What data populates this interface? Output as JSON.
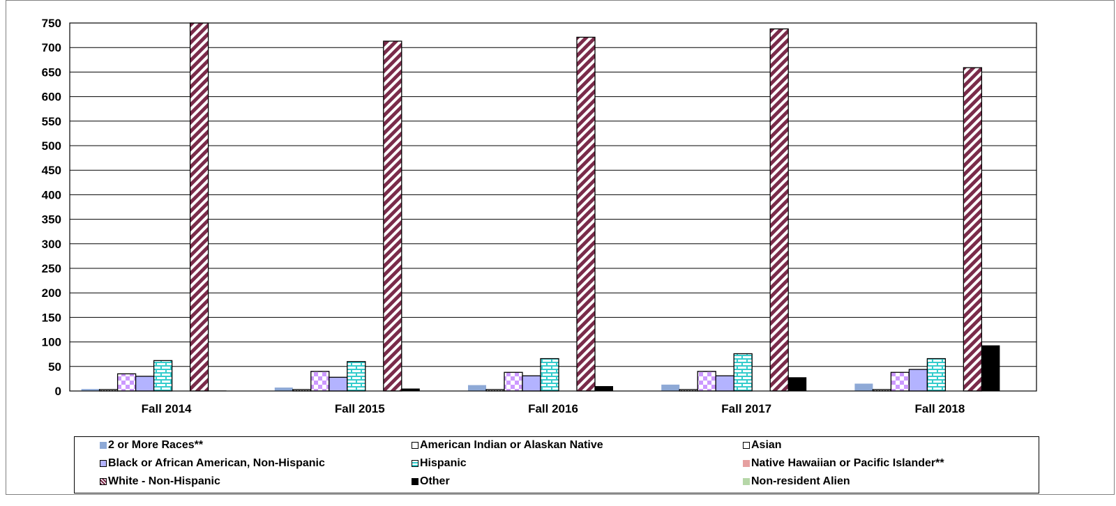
{
  "chart_data": {
    "type": "bar",
    "categories": [
      "Fall 2014",
      "Fall 2015",
      "Fall 2016",
      "Fall 2017",
      "Fall 2018"
    ],
    "ylim": [
      0,
      750
    ],
    "yticks": [
      "0",
      "50",
      "100",
      "150",
      "200",
      "250",
      "300",
      "350",
      "400",
      "450",
      "500",
      "550",
      "600",
      "650",
      "700",
      "750"
    ],
    "grid": true,
    "legend_position": "bottom",
    "series": [
      {
        "name": "2 or More Races**",
        "values": [
          4,
          7,
          12,
          13,
          15
        ],
        "color": "#8ea9d6",
        "pattern": "solid"
      },
      {
        "name": "American Indian or Alaskan Native",
        "values": [
          3,
          3,
          3,
          3,
          3
        ],
        "color": "#000000",
        "pattern": "dotted-light"
      },
      {
        "name": "Asian",
        "values": [
          35,
          40,
          38,
          40,
          38
        ],
        "color": "#cc99ff",
        "pattern": "checker"
      },
      {
        "name": "Black or African American, Non-Hispanic",
        "values": [
          30,
          28,
          31,
          31,
          44
        ],
        "color": "#b3b3ff",
        "pattern": "solid"
      },
      {
        "name": "Hispanic",
        "values": [
          62,
          60,
          66,
          76,
          66
        ],
        "color": "#33cccc",
        "pattern": "brick"
      },
      {
        "name": "Native Hawaiian or Pacific Islander**",
        "values": [
          0,
          0,
          0,
          0,
          0
        ],
        "color": "#e6a0a0",
        "pattern": "solid"
      },
      {
        "name": "White - Non-Hispanic",
        "values": [
          750,
          713,
          721,
          738,
          659
        ],
        "color": "#7a2b4a",
        "pattern": "diagonal"
      },
      {
        "name": "Other",
        "values": [
          1,
          5,
          10,
          28,
          93
        ],
        "color": "#000000",
        "pattern": "solid"
      },
      {
        "name": "Non-resident Alien",
        "values": [
          0,
          0,
          0,
          0,
          0
        ],
        "color": "#b6d7a8",
        "pattern": "solid"
      }
    ]
  }
}
